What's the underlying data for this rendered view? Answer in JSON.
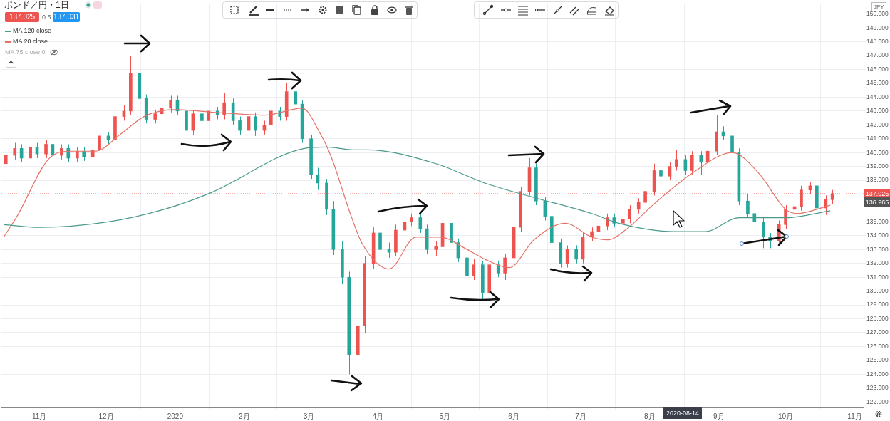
{
  "chart_data": {
    "type": "candlestick",
    "title": "ポンド／円・1日",
    "x": [
      "2019-10-17",
      "2019-10-21",
      "2019-10-24",
      "2019-10-28",
      "2019-10-31",
      "2019-11-04",
      "2019-11-07",
      "2019-11-11",
      "2019-11-14",
      "2019-11-18",
      "2019-11-21",
      "2019-11-25",
      "2019-11-28",
      "2019-12-02",
      "2019-12-05",
      "2019-12-09",
      "2019-12-12",
      "2019-12-16",
      "2019-12-19",
      "2019-12-23",
      "2019-12-26",
      "2019-12-30",
      "2020-01-02",
      "2020-01-06",
      "2020-01-09",
      "2020-01-13",
      "2020-01-16",
      "2020-01-20",
      "2020-01-23",
      "2020-01-27",
      "2020-01-30",
      "2020-02-03",
      "2020-02-06",
      "2020-02-10",
      "2020-02-13",
      "2020-02-17",
      "2020-02-20",
      "2020-02-24",
      "2020-02-27",
      "2020-03-02",
      "2020-03-05",
      "2020-03-09",
      "2020-03-12",
      "2020-03-16",
      "2020-03-19",
      "2020-03-23",
      "2020-03-26",
      "2020-03-30",
      "2020-04-02",
      "2020-04-06",
      "2020-04-09",
      "2020-04-13",
      "2020-04-16",
      "2020-04-20",
      "2020-04-23",
      "2020-04-27",
      "2020-04-30",
      "2020-05-04",
      "2020-05-07",
      "2020-05-11",
      "2020-05-14",
      "2020-05-18",
      "2020-05-21",
      "2020-05-25",
      "2020-05-28",
      "2020-06-01",
      "2020-06-04",
      "2020-06-08",
      "2020-06-11",
      "2020-06-15",
      "2020-06-18",
      "2020-06-22",
      "2020-06-25",
      "2020-06-29",
      "2020-07-02",
      "2020-07-06",
      "2020-07-09",
      "2020-07-13",
      "2020-07-16",
      "2020-07-20",
      "2020-07-23",
      "2020-07-27",
      "2020-07-30",
      "2020-08-03",
      "2020-08-06",
      "2020-08-10",
      "2020-08-13",
      "2020-08-17",
      "2020-08-20",
      "2020-08-24",
      "2020-08-27",
      "2020-08-31",
      "2020-09-03",
      "2020-09-07",
      "2020-09-10",
      "2020-09-14",
      "2020-09-17",
      "2020-09-21",
      "2020-09-24",
      "2020-09-28",
      "2020-10-01",
      "2020-10-05",
      "2020-10-08",
      "2020-10-12",
      "2020-10-15",
      "2020-10-19",
      "2020-10-22"
    ],
    "ohlc": [
      [
        139.2,
        140.1,
        138.6,
        139.8
      ],
      [
        139.8,
        140.7,
        139.5,
        140.3
      ],
      [
        140.3,
        140.6,
        139.3,
        139.6
      ],
      [
        139.6,
        140.7,
        139.3,
        140.4
      ],
      [
        140.4,
        140.7,
        139.6,
        139.9
      ],
      [
        139.9,
        140.9,
        139.6,
        140.6
      ],
      [
        140.6,
        140.9,
        139.4,
        139.8
      ],
      [
        139.8,
        140.6,
        139.5,
        140.3
      ],
      [
        140.3,
        140.6,
        139.3,
        139.6
      ],
      [
        139.6,
        140.4,
        139.3,
        140.1
      ],
      [
        140.1,
        140.4,
        139.4,
        139.7
      ],
      [
        139.7,
        140.5,
        139.4,
        140.2
      ],
      [
        140.2,
        141.5,
        139.9,
        141.2
      ],
      [
        141.2,
        141.5,
        140.6,
        140.9
      ],
      [
        140.9,
        142.9,
        140.6,
        142.6
      ],
      [
        142.6,
        143.4,
        142.3,
        143.0
      ],
      [
        143.0,
        147.0,
        142.7,
        145.7
      ],
      [
        145.7,
        146.0,
        143.6,
        143.9
      ],
      [
        143.9,
        144.2,
        142.1,
        142.4
      ],
      [
        142.4,
        143.1,
        142.1,
        142.8
      ],
      [
        142.8,
        143.5,
        142.5,
        143.2
      ],
      [
        143.2,
        144.1,
        142.9,
        143.8
      ],
      [
        143.8,
        144.1,
        142.7,
        143.0
      ],
      [
        143.0,
        143.3,
        140.9,
        141.6
      ],
      [
        141.6,
        143.1,
        141.3,
        142.8
      ],
      [
        142.8,
        143.1,
        142.0,
        142.3
      ],
      [
        142.3,
        143.3,
        142.0,
        143.0
      ],
      [
        143.0,
        143.3,
        142.4,
        142.7
      ],
      [
        142.7,
        144.3,
        142.4,
        143.6
      ],
      [
        143.6,
        143.9,
        142.0,
        142.3
      ],
      [
        142.3,
        142.6,
        141.3,
        141.6
      ],
      [
        141.6,
        142.9,
        141.3,
        142.6
      ],
      [
        142.6,
        142.9,
        141.2,
        141.6
      ],
      [
        141.6,
        142.3,
        141.3,
        142.0
      ],
      [
        142.0,
        143.3,
        141.7,
        143.0
      ],
      [
        143.0,
        143.3,
        142.3,
        142.6
      ],
      [
        142.6,
        145.0,
        142.3,
        144.4
      ],
      [
        144.4,
        144.7,
        143.2,
        143.5
      ],
      [
        143.5,
        143.8,
        140.7,
        141.0
      ],
      [
        141.0,
        141.3,
        138.1,
        138.4
      ],
      [
        138.4,
        138.9,
        137.3,
        137.8
      ],
      [
        137.8,
        138.1,
        135.5,
        135.9
      ],
      [
        135.9,
        136.5,
        132.6,
        133.0
      ],
      [
        133.0,
        133.6,
        130.5,
        131.0
      ],
      [
        131.0,
        131.4,
        124.0,
        125.4
      ],
      [
        125.4,
        128.2,
        124.3,
        127.5
      ],
      [
        127.5,
        132.5,
        127.0,
        132.0
      ],
      [
        132.0,
        134.6,
        131.6,
        134.2
      ],
      [
        134.2,
        134.5,
        132.6,
        133.0
      ],
      [
        133.0,
        133.5,
        132.4,
        132.8
      ],
      [
        132.8,
        134.8,
        132.5,
        134.4
      ],
      [
        134.4,
        135.3,
        134.1,
        135.0
      ],
      [
        135.0,
        135.6,
        134.7,
        135.3
      ],
      [
        135.3,
        135.6,
        134.2,
        134.5
      ],
      [
        134.5,
        134.8,
        132.7,
        133.0
      ],
      [
        133.0,
        133.6,
        132.5,
        133.2
      ],
      [
        133.2,
        135.5,
        132.9,
        134.9
      ],
      [
        134.9,
        135.2,
        133.2,
        133.5
      ],
      [
        133.5,
        133.8,
        132.1,
        132.4
      ],
      [
        132.4,
        132.7,
        130.8,
        131.1
      ],
      [
        131.1,
        132.3,
        130.8,
        131.9
      ],
      [
        131.9,
        132.2,
        129.3,
        129.9
      ],
      [
        129.9,
        132.3,
        129.6,
        131.9
      ],
      [
        131.9,
        132.2,
        131.0,
        131.3
      ],
      [
        131.3,
        132.7,
        130.8,
        132.4
      ],
      [
        132.4,
        134.9,
        132.1,
        134.6
      ],
      [
        134.6,
        137.5,
        134.3,
        137.2
      ],
      [
        137.2,
        139.6,
        136.9,
        138.9
      ],
      [
        138.9,
        139.2,
        136.2,
        136.5
      ],
      [
        136.5,
        136.8,
        135.1,
        135.4
      ],
      [
        135.4,
        135.7,
        133.2,
        133.5
      ],
      [
        133.5,
        133.8,
        131.7,
        132.0
      ],
      [
        132.0,
        133.3,
        131.7,
        133.0
      ],
      [
        133.0,
        133.3,
        132.0,
        132.3
      ],
      [
        132.3,
        134.2,
        132.0,
        133.9
      ],
      [
        133.9,
        134.6,
        133.6,
        134.3
      ],
      [
        134.3,
        135.0,
        134.0,
        134.7
      ],
      [
        134.7,
        135.6,
        134.4,
        135.3
      ],
      [
        135.3,
        135.6,
        134.6,
        134.9
      ],
      [
        134.9,
        135.5,
        134.6,
        135.2
      ],
      [
        135.2,
        136.2,
        134.9,
        135.9
      ],
      [
        135.9,
        136.7,
        135.6,
        136.4
      ],
      [
        136.4,
        137.5,
        136.1,
        137.2
      ],
      [
        137.2,
        139.2,
        136.9,
        138.7
      ],
      [
        138.7,
        139.0,
        138.0,
        138.3
      ],
      [
        138.3,
        139.3,
        138.0,
        139.0
      ],
      [
        139.0,
        140.2,
        138.7,
        139.5
      ],
      [
        139.5,
        139.8,
        138.4,
        138.7
      ],
      [
        138.7,
        140.1,
        138.4,
        139.8
      ],
      [
        139.8,
        140.1,
        138.4,
        139.3
      ],
      [
        139.3,
        140.4,
        139.0,
        140.1
      ],
      [
        140.1,
        142.7,
        139.8,
        141.5
      ],
      [
        141.5,
        141.9,
        140.9,
        141.2
      ],
      [
        141.2,
        141.5,
        139.7,
        140.0
      ],
      [
        140.0,
        140.3,
        136.2,
        136.5
      ],
      [
        136.5,
        137.0,
        135.3,
        135.6
      ],
      [
        135.6,
        135.9,
        134.7,
        135.0
      ],
      [
        135.0,
        135.3,
        133.1,
        133.9
      ],
      [
        133.9,
        134.2,
        133.1,
        133.6
      ],
      [
        133.6,
        135.1,
        133.3,
        134.8
      ],
      [
        134.8,
        136.2,
        134.5,
        135.9
      ],
      [
        135.9,
        136.4,
        135.1,
        136.1
      ],
      [
        136.1,
        137.6,
        135.8,
        137.3
      ],
      [
        137.3,
        137.9,
        137.0,
        137.6
      ],
      [
        137.6,
        137.9,
        135.7,
        136.0
      ],
      [
        136.0,
        136.9,
        135.5,
        136.6
      ],
      [
        136.6,
        137.3,
        136.3,
        137.025
      ]
    ],
    "colors": [
      "#ef5350",
      "#ef5350",
      "#26a69a",
      "#ef5350",
      "#26a69a",
      "#ef5350",
      "#26a69a",
      "#ef5350",
      "#26a69a",
      "#ef5350",
      "#26a69a",
      "#ef5350",
      "#ef5350",
      "#26a69a",
      "#ef5350",
      "#ef5350",
      "#ef5350",
      "#26a69a",
      "#26a69a",
      "#ef5350",
      "#ef5350",
      "#ef5350",
      "#26a69a",
      "#26a69a",
      "#ef5350",
      "#26a69a",
      "#ef5350",
      "#26a69a",
      "#ef5350",
      "#26a69a",
      "#26a69a",
      "#ef5350",
      "#26a69a",
      "#ef5350",
      "#ef5350",
      "#26a69a",
      "#ef5350",
      "#26a69a",
      "#26a69a",
      "#26a69a",
      "#26a69a",
      "#26a69a",
      "#26a69a",
      "#26a69a",
      "#26a69a",
      "#ef5350",
      "#ef5350",
      "#ef5350",
      "#26a69a",
      "#26a69a",
      "#ef5350",
      "#ef5350",
      "#ef5350",
      "#26a69a",
      "#26a69a",
      "#ef5350",
      "#ef5350",
      "#26a69a",
      "#26a69a",
      "#26a69a",
      "#ef5350",
      "#26a69a",
      "#ef5350",
      "#26a69a",
      "#ef5350",
      "#ef5350",
      "#ef5350",
      "#ef5350",
      "#26a69a",
      "#26a69a",
      "#26a69a",
      "#26a69a",
      "#ef5350",
      "#26a69a",
      "#ef5350",
      "#ef5350",
      "#ef5350",
      "#ef5350",
      "#26a69a",
      "#ef5350",
      "#ef5350",
      "#ef5350",
      "#ef5350",
      "#ef5350",
      "#26a69a",
      "#ef5350",
      "#ef5350",
      "#26a69a",
      "#ef5350",
      "#26a69a",
      "#ef5350",
      "#ef5350",
      "#26a69a",
      "#26a69a",
      "#26a69a",
      "#26a69a",
      "#26a69a",
      "#26a69a",
      "#26a69a",
      "#ef5350",
      "#ef5350",
      "#ef5350",
      "#ef5350",
      "#ef5350",
      "#26a69a",
      "#ef5350",
      "#ef5350"
    ],
    "series": [
      {
        "type": "line",
        "name": "MA 120 close",
        "color": "#4a9a8c",
        "x": [
          "2019-10-16",
          "2019-11-01",
          "2019-12-02",
          "2019-12-27",
          "2020-01-17",
          "2020-02-28",
          "2020-03-09",
          "2020-03-21",
          "2020-03-27",
          "2020-04-27",
          "2020-05-19",
          "2020-06-09",
          "2020-07-06",
          "2020-07-18",
          "2020-08-12",
          "2020-08-26",
          "2020-09-10",
          "2020-10-01",
          "2020-10-21"
        ],
        "values": [
          134.8,
          134.6,
          135.0,
          135.9,
          137.1,
          140.3,
          140.4,
          140.2,
          140.2,
          139.2,
          137.8,
          136.8,
          135.6,
          134.9,
          134.3,
          134.3,
          135.3,
          135.3,
          135.8
        ]
      },
      {
        "type": "line",
        "name": "MA 20 close",
        "color": "#e57368",
        "x": [
          "2019-10-16",
          "2019-10-22",
          "2019-11-05",
          "2019-11-15",
          "2019-11-26",
          "2019-12-08",
          "2019-12-18",
          "2020-01-01",
          "2020-01-19",
          "2020-02-10",
          "2020-02-27",
          "2020-03-06",
          "2020-03-11",
          "2020-03-20",
          "2020-03-25",
          "2020-04-06",
          "2020-04-18",
          "2020-04-29",
          "2020-05-10",
          "2020-05-19",
          "2020-05-30",
          "2020-06-10",
          "2020-06-24",
          "2020-07-06",
          "2020-07-13",
          "2020-07-21",
          "2020-08-03",
          "2020-08-20",
          "2020-09-07",
          "2020-09-19",
          "2020-10-01",
          "2020-10-06",
          "2020-10-21"
        ],
        "values": [
          133.9,
          135.4,
          139.5,
          140.1,
          140.1,
          141.4,
          142.6,
          143.1,
          142.9,
          142.7,
          143.2,
          141.4,
          139.7,
          135.4,
          133.4,
          131.6,
          133.9,
          133.9,
          133.1,
          132.3,
          131.7,
          133.7,
          134.9,
          133.9,
          133.7,
          134.4,
          136.3,
          138.5,
          140.0,
          138.5,
          135.9,
          135.6,
          136.2
        ]
      }
    ],
    "xlim": [
      "2019-10-15",
      "2020-11-05"
    ],
    "xticks": [
      {
        "value": "2019-11-01",
        "label": "11月"
      },
      {
        "value": "2019-12-01",
        "label": "12月"
      },
      {
        "value": "2020-01-01",
        "label": "2020"
      },
      {
        "value": "2020-02-01",
        "label": "2月"
      },
      {
        "value": "2020-03-01",
        "label": "3月"
      },
      {
        "value": "2020-04-01",
        "label": "4月"
      },
      {
        "value": "2020-05-01",
        "label": "5月"
      },
      {
        "value": "2020-06-01",
        "label": "6月"
      },
      {
        "value": "2020-07-01",
        "label": "7月"
      },
      {
        "value": "2020-08-01",
        "label": "8月"
      },
      {
        "value": "2020-09-01",
        "label": "9月"
      },
      {
        "value": "2020-10-01",
        "label": "10月"
      },
      {
        "value": "2020-11-01",
        "label": "11月"
      }
    ],
    "ylim": [
      121.6,
      150.7
    ],
    "yticks": [
      {
        "value": 122,
        "label": "122.000"
      },
      {
        "value": 123,
        "label": "123.000"
      },
      {
        "value": 124,
        "label": "124.000"
      },
      {
        "value": 125,
        "label": "125.000"
      },
      {
        "value": 126,
        "label": "126.000"
      },
      {
        "value": 127,
        "label": "127.000"
      },
      {
        "value": 128,
        "label": "128.000"
      },
      {
        "value": 129,
        "label": "129.000"
      },
      {
        "value": 130,
        "label": "130.000"
      },
      {
        "value": 131,
        "label": "131.000"
      },
      {
        "value": 132,
        "label": "132.000"
      },
      {
        "value": 133,
        "label": "133.000"
      },
      {
        "value": 134,
        "label": "134.000"
      },
      {
        "value": 135,
        "label": "135.000"
      },
      {
        "value": 138,
        "label": "138.000"
      },
      {
        "value": 139,
        "label": "139.000"
      },
      {
        "value": 140,
        "label": "140.000"
      },
      {
        "value": 141,
        "label": "141.000"
      },
      {
        "value": 142,
        "label": "142.000"
      },
      {
        "value": 143,
        "label": "143.000"
      },
      {
        "value": 144,
        "label": "144.000"
      },
      {
        "value": 145,
        "label": "145.000"
      },
      {
        "value": 146,
        "label": "146.000"
      },
      {
        "value": 147,
        "label": "147.000"
      },
      {
        "value": 148,
        "label": "148.000"
      },
      {
        "value": 149,
        "label": "149.000"
      },
      {
        "value": 150,
        "label": "150.000"
      }
    ],
    "ref_lines": [
      {
        "axis": "y",
        "value": 137.025,
        "label": "137.025",
        "color": "#ef5350",
        "line_style": "dotted"
      }
    ],
    "annotations": [
      "137.025",
      "0.5",
      "137.031",
      "MA 75 close 0",
      "JPY",
      "136.265",
      "2020-08-14"
    ],
    "grid": true,
    "legend": "top left"
  }
}
